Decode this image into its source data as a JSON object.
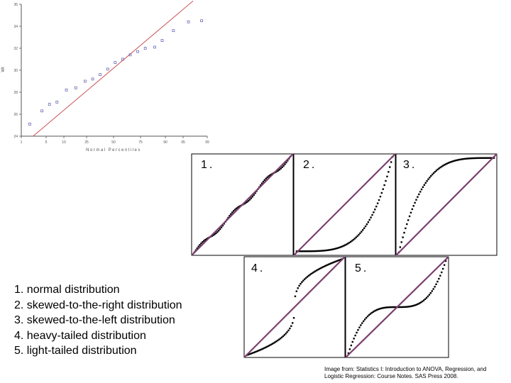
{
  "chart_data": [
    {
      "type": "scatter",
      "xlabel": "Normal Percentiles",
      "ylabel": "Wt",
      "xlim": [
        0,
        99
      ],
      "ylim": [
        24,
        36
      ],
      "x_ticks": [
        "1",
        "5",
        "10",
        "25",
        "50",
        "75",
        "90",
        "95",
        "99"
      ],
      "y_ticks": [
        "24",
        "26",
        "28",
        "30",
        "32",
        "34",
        "36"
      ],
      "grid": false,
      "reference_line": {
        "x": [
          1,
          99
        ],
        "y": [
          24,
          36.3
        ]
      },
      "x": [
        4.5,
        11,
        15,
        19,
        24,
        29,
        34,
        38,
        42,
        46,
        50,
        54,
        58,
        62,
        66,
        71,
        75,
        81,
        89,
        96
      ],
      "y": [
        25.1,
        26.3,
        26.9,
        27.1,
        28.2,
        28.4,
        29.0,
        29.2,
        29.6,
        30.1,
        30.7,
        31.0,
        31.4,
        31.7,
        32.0,
        32.1,
        32.7,
        33.6,
        34.4,
        34.5
      ]
    },
    {
      "type": "scatter",
      "title": "1.",
      "shape": "normal"
    },
    {
      "type": "scatter",
      "title": "2.",
      "shape": "skewed-right"
    },
    {
      "type": "scatter",
      "title": "3.",
      "shape": "skewed-left"
    },
    {
      "type": "scatter",
      "title": "4.",
      "shape": "heavy-tailed"
    },
    {
      "type": "scatter",
      "title": "5.",
      "shape": "light-tailed"
    }
  ],
  "legend": [
    "1. normal distribution",
    "2. skewed-to-the-right distribution",
    "3. skewed-to-the-left distribution",
    "4. heavy-tailed distribution",
    "5. light-tailed distribution"
  ],
  "caption": [
    "Image from: Statistics I: Introduction to ANOVA, Regression, and",
    "Logistic Regression: Course Notes. SAS Press 2008."
  ],
  "colors": {
    "reference_line": "#c8474b",
    "sample_points": "#5a5ab0",
    "panel_line": "#7b3f6e",
    "points": "#000000",
    "axis": "#555555"
  }
}
